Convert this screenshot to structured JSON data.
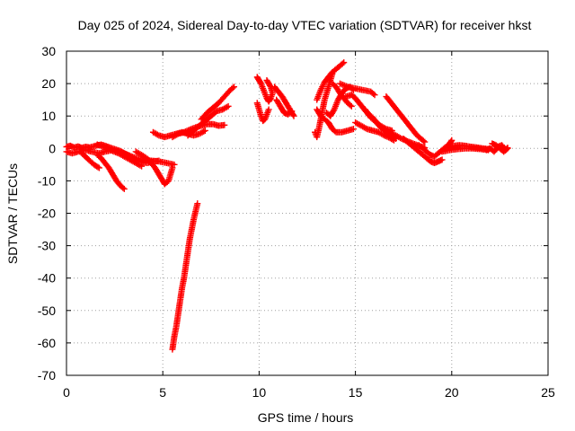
{
  "chart_data": {
    "type": "scatter",
    "title": "Day 025 of 2024, Sidereal Day-to-day VTEC variation (SDTVAR) for receiver hkst",
    "xlabel": "GPS time / hours",
    "ylabel": "SDTVAR / TECUs",
    "xlim": [
      0,
      25
    ],
    "ylim": [
      -70,
      30
    ],
    "xticks": [
      "0",
      "5",
      "10",
      "15",
      "20",
      "25"
    ],
    "yticks": [
      "30",
      "20",
      "10",
      "0",
      "-10",
      "-20",
      "-30",
      "-40",
      "-50",
      "-60",
      "-70"
    ],
    "grid": true,
    "marker": "+",
    "color": "#ff0000",
    "series": [
      {
        "name": "s1",
        "points": [
          [
            0.0,
            -1
          ],
          [
            0.3,
            -1.5
          ],
          [
            0.6,
            -1
          ],
          [
            1.0,
            -0.5
          ],
          [
            1.3,
            -1
          ],
          [
            1.7,
            -1.5
          ],
          [
            2.0,
            -1
          ],
          [
            2.4,
            -0.5
          ],
          [
            2.8,
            -1
          ],
          [
            3.2,
            -2
          ],
          [
            3.6,
            -3
          ],
          [
            4.0,
            -3.5
          ],
          [
            4.4,
            -3.8
          ],
          [
            4.8,
            -4
          ],
          [
            5.2,
            -4.5
          ],
          [
            5.6,
            -5
          ]
        ]
      },
      {
        "name": "s2",
        "points": [
          [
            0.0,
            0.5
          ],
          [
            0.2,
            0.8
          ],
          [
            0.4,
            0.3
          ],
          [
            0.6,
            0.6
          ],
          [
            0.8,
            0.2
          ],
          [
            1.0,
            0.5
          ],
          [
            1.2,
            0.3
          ],
          [
            1.5,
            0.8
          ],
          [
            1.8,
            1.2
          ],
          [
            2.0,
            0.8
          ],
          [
            2.2,
            0.4
          ],
          [
            2.5,
            -0.2
          ],
          [
            2.8,
            -0.8
          ],
          [
            3.0,
            -1.5
          ],
          [
            3.3,
            -2.5
          ],
          [
            3.6,
            -3.5
          ],
          [
            3.9,
            -4.2
          ],
          [
            4.2,
            -4.5
          ],
          [
            4.5,
            -4
          ],
          [
            4.8,
            -3.8
          ]
        ]
      },
      {
        "name": "s3",
        "points": [
          [
            0.7,
            -1
          ],
          [
            0.9,
            -2
          ],
          [
            1.1,
            -3.2
          ],
          [
            1.3,
            -4.3
          ],
          [
            1.5,
            -5.3
          ],
          [
            1.7,
            -6
          ]
        ]
      },
      {
        "name": "s4",
        "points": [
          [
            1.6,
            -2
          ],
          [
            1.8,
            -3
          ],
          [
            2.0,
            -4.5
          ],
          [
            2.2,
            -6
          ],
          [
            2.4,
            -8
          ],
          [
            2.6,
            -10
          ],
          [
            2.8,
            -11.5
          ],
          [
            3.0,
            -12.5
          ]
        ]
      },
      {
        "name": "s5",
        "points": [
          [
            1.6,
            1.2
          ],
          [
            1.8,
            0.8
          ],
          [
            2.1,
            0
          ],
          [
            2.4,
            -0.8
          ],
          [
            2.7,
            -1.5
          ],
          [
            3.0,
            -2.5
          ],
          [
            3.3,
            -3.5
          ],
          [
            3.6,
            -4.5
          ],
          [
            3.9,
            -5.5
          ]
        ]
      },
      {
        "name": "s6",
        "points": [
          [
            3.6,
            -1
          ],
          [
            3.9,
            -2
          ],
          [
            4.2,
            -3.2
          ],
          [
            4.4,
            -4.5
          ],
          [
            4.6,
            -6
          ],
          [
            4.8,
            -8
          ],
          [
            5.0,
            -10
          ],
          [
            5.1,
            -11
          ],
          [
            5.3,
            -10
          ],
          [
            5.4,
            -8
          ],
          [
            5.5,
            -6
          ]
        ]
      },
      {
        "name": "s7",
        "points": [
          [
            4.5,
            5
          ],
          [
            4.8,
            4
          ],
          [
            5.1,
            3.5
          ],
          [
            5.4,
            4
          ],
          [
            5.7,
            4.5
          ],
          [
            6.0,
            5
          ],
          [
            6.3,
            4.5
          ],
          [
            6.6,
            4
          ],
          [
            6.9,
            4.5
          ],
          [
            7.2,
            5.5
          ]
        ]
      },
      {
        "name": "s8",
        "points": [
          [
            5.5,
            3.5
          ],
          [
            5.8,
            4.5
          ],
          [
            6.1,
            5
          ],
          [
            6.4,
            5.8
          ],
          [
            6.7,
            6.5
          ],
          [
            7.0,
            7
          ],
          [
            7.3,
            7.5
          ],
          [
            7.6,
            7.5
          ],
          [
            7.9,
            7
          ],
          [
            8.2,
            7.2
          ]
        ]
      },
      {
        "name": "s9",
        "points": [
          [
            6.3,
            4
          ],
          [
            6.6,
            5.5
          ],
          [
            6.9,
            7
          ],
          [
            7.2,
            8.5
          ],
          [
            7.5,
            10
          ],
          [
            7.8,
            11.5
          ],
          [
            8.1,
            12
          ],
          [
            8.4,
            13
          ]
        ]
      },
      {
        "name": "s10",
        "points": [
          [
            7.0,
            9
          ],
          [
            7.3,
            11
          ],
          [
            7.6,
            12.5
          ],
          [
            7.9,
            14
          ],
          [
            8.2,
            16
          ],
          [
            8.5,
            18
          ],
          [
            8.7,
            19
          ]
        ]
      },
      {
        "name": "s11",
        "points": [
          [
            5.5,
            -62
          ],
          [
            5.6,
            -58
          ],
          [
            5.7,
            -55
          ],
          [
            5.8,
            -51
          ],
          [
            5.9,
            -47
          ],
          [
            6.0,
            -43
          ],
          [
            6.1,
            -40
          ],
          [
            6.2,
            -36
          ],
          [
            6.3,
            -32
          ],
          [
            6.4,
            -28
          ],
          [
            6.5,
            -25
          ],
          [
            6.6,
            -22
          ],
          [
            6.7,
            -19.5
          ],
          [
            6.8,
            -17
          ]
        ]
      },
      {
        "name": "s12",
        "points": [
          [
            9.9,
            22
          ],
          [
            10.0,
            21
          ],
          [
            10.1,
            20
          ],
          [
            10.2,
            18.5
          ],
          [
            10.3,
            17
          ],
          [
            10.4,
            15.5
          ],
          [
            10.5,
            14.5
          ],
          [
            10.6,
            15.5
          ],
          [
            10.7,
            17
          ],
          [
            10.6,
            19
          ],
          [
            10.4,
            21
          ]
        ]
      },
      {
        "name": "s13",
        "points": [
          [
            9.9,
            14
          ],
          [
            10.0,
            12
          ],
          [
            10.1,
            10
          ],
          [
            10.2,
            8.5
          ],
          [
            10.3,
            9
          ],
          [
            10.4,
            10.5
          ],
          [
            10.5,
            12
          ]
        ]
      },
      {
        "name": "s14",
        "points": [
          [
            10.8,
            19
          ],
          [
            11.0,
            17.5
          ],
          [
            11.2,
            16
          ],
          [
            11.4,
            14
          ],
          [
            11.6,
            12
          ],
          [
            11.8,
            10
          ]
        ]
      },
      {
        "name": "s15",
        "points": [
          [
            10.9,
            15
          ],
          [
            11.1,
            13
          ],
          [
            11.3,
            11
          ],
          [
            11.5,
            10.5
          ],
          [
            11.7,
            11.5
          ]
        ]
      },
      {
        "name": "s16",
        "points": [
          [
            12.9,
            5
          ],
          [
            13.0,
            3.5
          ],
          [
            13.1,
            6
          ],
          [
            13.2,
            9
          ],
          [
            13.3,
            12
          ],
          [
            13.4,
            15
          ],
          [
            13.5,
            17
          ],
          [
            13.6,
            19
          ],
          [
            13.7,
            21
          ],
          [
            13.8,
            23
          ]
        ]
      },
      {
        "name": "s17",
        "points": [
          [
            13.0,
            15
          ],
          [
            13.2,
            18
          ],
          [
            13.4,
            20.5
          ],
          [
            13.6,
            22
          ],
          [
            13.8,
            23.5
          ],
          [
            14.0,
            24.5
          ],
          [
            14.2,
            25.5
          ],
          [
            14.4,
            26.5
          ]
        ]
      },
      {
        "name": "s18",
        "points": [
          [
            13.0,
            12
          ],
          [
            13.2,
            10
          ],
          [
            13.4,
            9
          ],
          [
            13.6,
            8
          ],
          [
            13.8,
            6
          ],
          [
            14.0,
            5
          ],
          [
            14.3,
            5
          ],
          [
            14.6,
            5.5
          ],
          [
            14.9,
            6
          ]
        ]
      },
      {
        "name": "s19",
        "points": [
          [
            13.5,
            11
          ],
          [
            13.7,
            10
          ],
          [
            13.9,
            12
          ],
          [
            14.1,
            15
          ],
          [
            14.3,
            17
          ],
          [
            14.5,
            18.5
          ],
          [
            14.7,
            19
          ],
          [
            14.9,
            18
          ]
        ]
      },
      {
        "name": "s20",
        "points": [
          [
            13.8,
            20
          ],
          [
            14.0,
            19
          ],
          [
            14.2,
            17
          ],
          [
            14.4,
            15.5
          ],
          [
            14.6,
            14
          ],
          [
            14.8,
            13
          ]
        ]
      },
      {
        "name": "s21",
        "points": [
          [
            14.2,
            20
          ],
          [
            14.6,
            19
          ],
          [
            15.0,
            18.5
          ],
          [
            15.4,
            18
          ],
          [
            15.8,
            17.5
          ],
          [
            16.0,
            16.5
          ]
        ]
      },
      {
        "name": "s22",
        "points": [
          [
            14.5,
            16
          ],
          [
            14.8,
            16.5
          ],
          [
            15.0,
            15.5
          ],
          [
            15.2,
            14
          ],
          [
            15.4,
            12.5
          ],
          [
            15.6,
            11
          ],
          [
            15.8,
            9.5
          ],
          [
            16.0,
            8.5
          ],
          [
            16.3,
            7
          ],
          [
            16.6,
            6
          ],
          [
            16.9,
            5.5
          ]
        ]
      },
      {
        "name": "s23",
        "points": [
          [
            15.0,
            8
          ],
          [
            15.3,
            7
          ],
          [
            15.6,
            6
          ],
          [
            15.9,
            5.5
          ],
          [
            16.2,
            5
          ],
          [
            16.5,
            4
          ],
          [
            16.8,
            3.2
          ],
          [
            17.0,
            2.5
          ]
        ]
      },
      {
        "name": "s24",
        "points": [
          [
            15.5,
            12
          ],
          [
            15.7,
            10.5
          ],
          [
            15.9,
            9.5
          ],
          [
            16.1,
            8
          ],
          [
            16.3,
            6.5
          ],
          [
            16.5,
            5.5
          ],
          [
            16.7,
            4.5
          ],
          [
            16.9,
            3.5
          ],
          [
            17.1,
            3
          ]
        ]
      },
      {
        "name": "s25",
        "points": [
          [
            16.6,
            16
          ],
          [
            16.8,
            14.5
          ],
          [
            17.0,
            13
          ],
          [
            17.2,
            11.5
          ],
          [
            17.4,
            10
          ],
          [
            17.6,
            8.5
          ],
          [
            17.8,
            7
          ],
          [
            18.0,
            5.5
          ],
          [
            18.2,
            4
          ],
          [
            18.4,
            3
          ],
          [
            18.6,
            2
          ]
        ]
      },
      {
        "name": "s26",
        "points": [
          [
            16.5,
            6
          ],
          [
            16.8,
            5
          ],
          [
            17.1,
            4
          ],
          [
            17.4,
            3
          ],
          [
            17.7,
            2.2
          ],
          [
            18.0,
            1.5
          ],
          [
            18.3,
            0.8
          ],
          [
            18.6,
            0.2
          ]
        ]
      },
      {
        "name": "s27",
        "points": [
          [
            17.5,
            3
          ],
          [
            17.7,
            2
          ],
          [
            17.9,
            1
          ],
          [
            18.1,
            0
          ],
          [
            18.3,
            -1
          ],
          [
            18.5,
            -2
          ],
          [
            18.7,
            -3
          ],
          [
            18.9,
            -4
          ],
          [
            19.1,
            -4.5
          ],
          [
            19.3,
            -4
          ],
          [
            19.5,
            -3.5
          ]
        ]
      },
      {
        "name": "s28",
        "points": [
          [
            18.3,
            1
          ],
          [
            18.5,
            0
          ],
          [
            18.7,
            -1
          ],
          [
            18.9,
            -2
          ],
          [
            19.1,
            -2.5
          ],
          [
            19.3,
            -1.5
          ],
          [
            19.5,
            -0.5
          ],
          [
            19.7,
            0.5
          ],
          [
            19.9,
            1.5
          ],
          [
            20.0,
            2.5
          ]
        ]
      },
      {
        "name": "s29",
        "points": [
          [
            19.8,
            0.5
          ],
          [
            20.1,
            0.8
          ],
          [
            20.4,
            1
          ],
          [
            20.7,
            0.8
          ],
          [
            21.0,
            0.5
          ],
          [
            21.3,
            0.3
          ],
          [
            21.6,
            0
          ],
          [
            21.9,
            -0.2
          ],
          [
            22.0,
            0
          ]
        ]
      },
      {
        "name": "s30",
        "points": [
          [
            19.5,
            -1
          ],
          [
            19.9,
            -0.5
          ],
          [
            20.3,
            -0.2
          ],
          [
            20.7,
            0
          ],
          [
            21.1,
            0
          ],
          [
            21.5,
            -0.2
          ],
          [
            21.9,
            -0.5
          ]
        ]
      },
      {
        "name": "s31",
        "points": [
          [
            21.8,
            -0.5
          ],
          [
            22.0,
            0
          ],
          [
            22.2,
            -1
          ],
          [
            22.4,
            0.5
          ],
          [
            22.6,
            1
          ],
          [
            22.8,
            -0.5
          ],
          [
            22.9,
            0.2
          ]
        ]
      },
      {
        "name": "s32",
        "points": [
          [
            22.1,
            1.5
          ],
          [
            22.3,
            1
          ],
          [
            22.5,
            0
          ],
          [
            22.7,
            -1
          ],
          [
            22.9,
            0
          ]
        ]
      }
    ]
  }
}
